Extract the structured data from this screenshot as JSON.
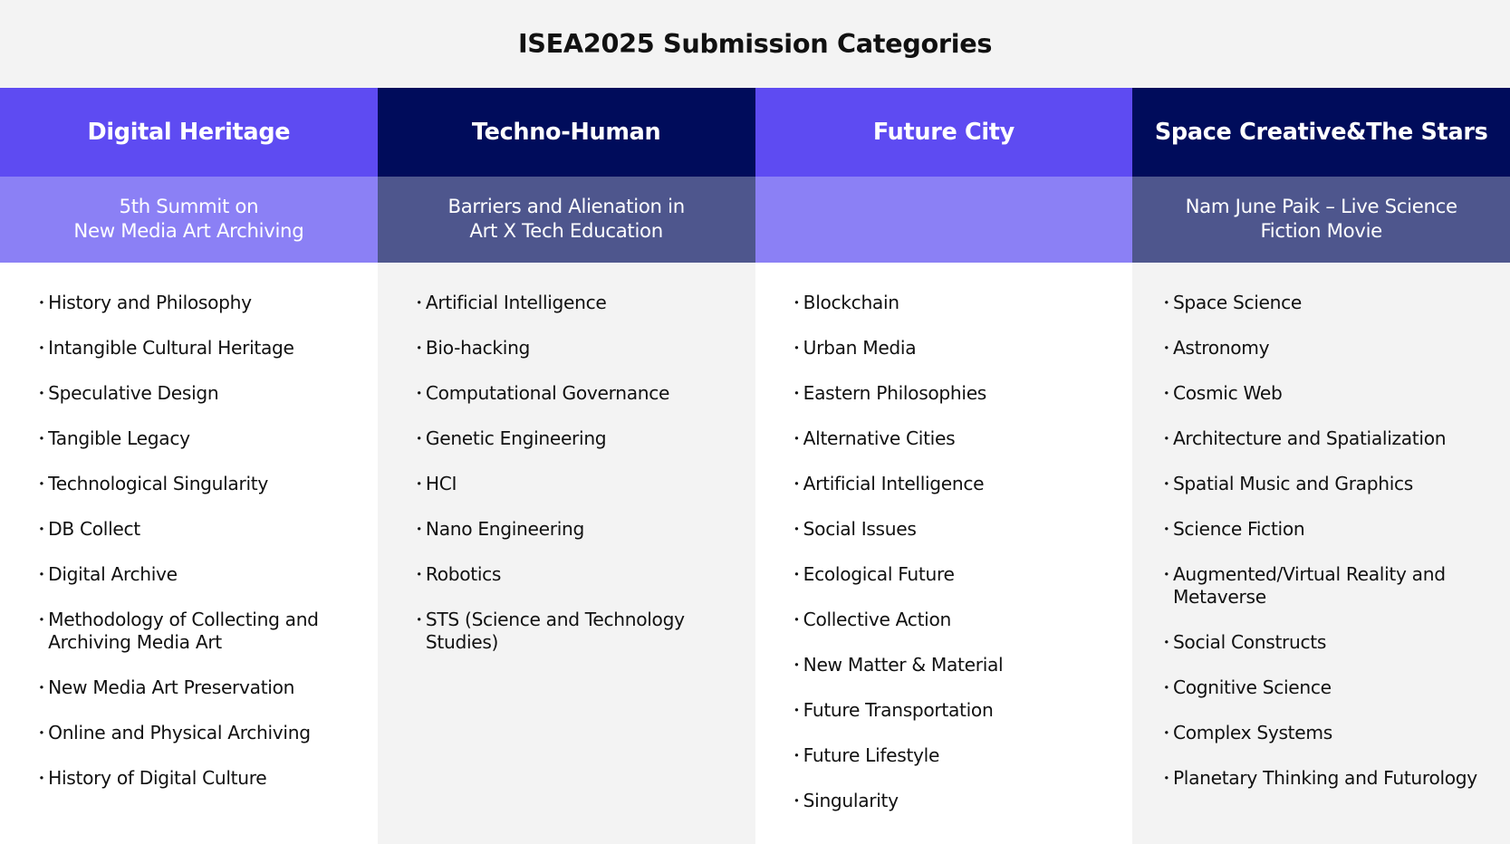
{
  "title": "ISEA2025 Submission Categories",
  "columns": [
    {
      "header": "Digital Heritage",
      "subheader": "5th Summit on\nNew Media Art Archiving",
      "items": [
        "History and Philosophy",
        "Intangible Cultural Heritage",
        "Speculative Design",
        "Tangible Legacy",
        "Technological Singularity",
        "DB Collect",
        "Digital Archive",
        "Methodology of Collecting and Archiving Media Art",
        "New Media Art Preservation",
        "Online and Physical Archiving",
        "History of Digital Culture"
      ]
    },
    {
      "header": "Techno-Human",
      "subheader": "Barriers and Alienation in\nArt X Tech Education",
      "items": [
        "Artificial Intelligence",
        "Bio-hacking",
        "Computational Governance",
        "Genetic Engineering",
        "HCI",
        "Nano Engineering",
        "Robotics",
        "STS (Science and Technology Studies)"
      ]
    },
    {
      "header": "Future City",
      "subheader": "",
      "items": [
        "Blockchain",
        "Urban Media",
        "Eastern Philosophies",
        "Alternative Cities",
        "Artificial Intelligence",
        "Social Issues",
        "Ecological Future",
        "Collective Action",
        "New Matter & Material",
        "Future Transportation",
        "Future Lifestyle",
        "Singularity"
      ]
    },
    {
      "header": "Space Creative&The Stars",
      "subheader": "Nam June Paik – Live Science\nFiction Movie",
      "items": [
        "Space Science",
        "Astronomy",
        "Cosmic Web",
        "Architecture and Spatialization",
        "Spatial Music and Graphics",
        "Science Fiction",
        "Augmented/Virtual Reality and Metaverse",
        "Social Constructs",
        "Cognitive Science",
        "Complex Systems",
        "Planetary Thinking and Futurology"
      ]
    }
  ],
  "colors": {
    "purple": "#5e4bf2",
    "navy": "#000c5b",
    "light_purple": "#8b80f5",
    "slate": "#4e568d"
  }
}
